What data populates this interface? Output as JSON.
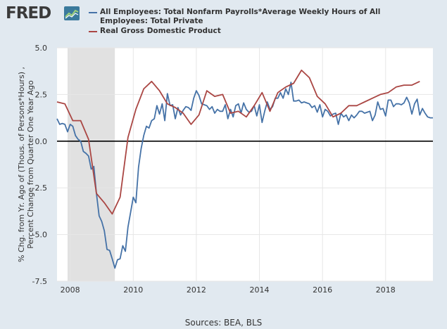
{
  "header": {
    "logo_text": "FRED",
    "logo_icon": "line-chart-icon"
  },
  "colors": {
    "series1": "#4572a7",
    "series2": "#aa4643",
    "recession": "#e1e1e1",
    "background": "#e1e9f0",
    "plot_bg": "#ffffff",
    "zero_line": "#000000"
  },
  "chart_data": {
    "type": "line",
    "ylabel": "% Chg. from Yr. Ago of (Thous. of Persons*Hours) , Percent Change from Quarter One Year Ago",
    "xlim": [
      2007.583,
      2019.5
    ],
    "ylim": [
      -7.5,
      5.0
    ],
    "yticks": [
      "5.0",
      "2.5",
      "0.0",
      "-2.5",
      "-5.0",
      "-7.5"
    ],
    "ytick_values": [
      5.0,
      2.5,
      0.0,
      -2.5,
      -5.0,
      -7.5
    ],
    "xticks": [
      "2008",
      "2010",
      "2012",
      "2014",
      "2016",
      "2018"
    ],
    "xtick_values": [
      2008,
      2010,
      2012,
      2014,
      2016,
      2018
    ],
    "grid": true,
    "legend_position": "top",
    "recessions": [
      [
        2007.917,
        2009.417
      ]
    ],
    "series": [
      {
        "name": "All Employees: Total Nonfarm Payrolls*Average Weekly Hours of All Employees: Total Private",
        "x": [
          2007.583,
          2007.667,
          2007.75,
          2007.833,
          2007.917,
          2008.0,
          2008.083,
          2008.167,
          2008.25,
          2008.333,
          2008.417,
          2008.5,
          2008.583,
          2008.667,
          2008.75,
          2008.833,
          2008.917,
          2009.0,
          2009.083,
          2009.167,
          2009.25,
          2009.333,
          2009.417,
          2009.5,
          2009.583,
          2009.667,
          2009.75,
          2009.833,
          2009.917,
          2010.0,
          2010.083,
          2010.167,
          2010.25,
          2010.333,
          2010.417,
          2010.5,
          2010.583,
          2010.667,
          2010.75,
          2010.833,
          2010.917,
          2011.0,
          2011.083,
          2011.167,
          2011.25,
          2011.333,
          2011.417,
          2011.5,
          2011.583,
          2011.667,
          2011.75,
          2011.833,
          2011.917,
          2012.0,
          2012.083,
          2012.167,
          2012.25,
          2012.333,
          2012.417,
          2012.5,
          2012.583,
          2012.667,
          2012.75,
          2012.833,
          2012.917,
          2013.0,
          2013.083,
          2013.167,
          2013.25,
          2013.333,
          2013.417,
          2013.5,
          2013.583,
          2013.667,
          2013.75,
          2013.833,
          2013.917,
          2014.0,
          2014.083,
          2014.167,
          2014.25,
          2014.333,
          2014.417,
          2014.5,
          2014.583,
          2014.667,
          2014.75,
          2014.833,
          2014.917,
          2015.0,
          2015.083,
          2015.167,
          2015.25,
          2015.333,
          2015.417,
          2015.5,
          2015.583,
          2015.667,
          2015.75,
          2015.833,
          2015.917,
          2016.0,
          2016.083,
          2016.167,
          2016.25,
          2016.333,
          2016.417,
          2016.5,
          2016.583,
          2016.667,
          2016.75,
          2016.833,
          2016.917,
          2017.0,
          2017.083,
          2017.167,
          2017.25,
          2017.333,
          2017.417,
          2017.5,
          2017.583,
          2017.667,
          2017.75,
          2017.833,
          2017.917,
          2018.0,
          2018.083,
          2018.167,
          2018.25,
          2018.333,
          2018.417,
          2018.5,
          2018.583,
          2018.667,
          2018.75,
          2018.833,
          2018.917,
          2019.0,
          2019.083,
          2019.167,
          2019.25,
          2019.333,
          2019.417,
          2019.5
        ],
        "values": [
          1.2,
          0.9,
          0.95,
          0.9,
          0.5,
          0.9,
          0.8,
          0.3,
          0.1,
          0.0,
          -0.55,
          -0.65,
          -0.8,
          -1.5,
          -1.35,
          -2.8,
          -4.0,
          -4.3,
          -4.8,
          -5.8,
          -5.85,
          -6.3,
          -6.8,
          -6.35,
          -6.3,
          -5.6,
          -5.9,
          -4.6,
          -3.8,
          -3.0,
          -3.3,
          -1.4,
          -0.4,
          0.3,
          0.8,
          0.7,
          1.1,
          1.2,
          1.9,
          1.45,
          2.0,
          1.1,
          2.55,
          1.9,
          1.95,
          1.2,
          1.8,
          1.4,
          1.65,
          1.85,
          1.8,
          1.65,
          2.3,
          2.7,
          2.45,
          2.0,
          1.95,
          1.9,
          1.7,
          1.85,
          1.5,
          1.7,
          1.6,
          1.6,
          1.95,
          1.2,
          1.7,
          1.3,
          1.9,
          2.0,
          1.5,
          2.05,
          1.7,
          1.55,
          1.6,
          1.9,
          1.35,
          1.95,
          1.0,
          1.6,
          2.1,
          1.7,
          1.85,
          2.3,
          2.3,
          2.6,
          2.3,
          2.8,
          2.5,
          3.15,
          2.15,
          2.15,
          2.2,
          2.05,
          2.1,
          2.05,
          2.0,
          1.8,
          1.9,
          1.55,
          1.95,
          1.3,
          1.7,
          1.6,
          1.35,
          1.45,
          1.5,
          0.9,
          1.5,
          1.3,
          1.4,
          1.1,
          1.4,
          1.25,
          1.4,
          1.6,
          1.6,
          1.5,
          1.55,
          1.6,
          1.1,
          1.4,
          2.1,
          1.7,
          1.75,
          1.35,
          2.2,
          2.2,
          1.85,
          2.0,
          2.0,
          1.95,
          2.05,
          2.35,
          2.05,
          1.45,
          2.0,
          2.25,
          1.4,
          1.75,
          1.5,
          1.3,
          1.25,
          1.25
        ]
      },
      {
        "name": "Real Gross Domestic Product",
        "x": [
          2007.583,
          2007.833,
          2008.083,
          2008.333,
          2008.583,
          2008.833,
          2009.083,
          2009.333,
          2009.583,
          2009.833,
          2010.083,
          2010.333,
          2010.583,
          2010.833,
          2011.083,
          2011.333,
          2011.583,
          2011.833,
          2012.083,
          2012.333,
          2012.583,
          2012.833,
          2013.083,
          2013.333,
          2013.583,
          2013.833,
          2014.083,
          2014.333,
          2014.583,
          2014.833,
          2015.083,
          2015.333,
          2015.583,
          2015.833,
          2016.083,
          2016.333,
          2016.583,
          2016.833,
          2017.083,
          2017.333,
          2017.583,
          2017.833,
          2018.083,
          2018.333,
          2018.583,
          2018.833,
          2019.083
        ],
        "values": [
          2.1,
          2.0,
          1.1,
          1.1,
          0.1,
          -2.8,
          -3.3,
          -3.9,
          -3.0,
          0.2,
          1.7,
          2.8,
          3.2,
          2.7,
          2.0,
          1.8,
          1.5,
          0.9,
          1.4,
          2.7,
          2.4,
          2.5,
          1.5,
          1.6,
          1.3,
          1.9,
          2.6,
          1.6,
          2.6,
          2.9,
          3.1,
          3.8,
          3.4,
          2.4,
          2.0,
          1.3,
          1.5,
          1.9,
          1.9,
          2.1,
          2.3,
          2.5,
          2.6,
          2.9,
          3.0,
          3.0,
          3.2
        ]
      }
    ]
  },
  "footer": {
    "source": "Sources: BEA, BLS"
  }
}
